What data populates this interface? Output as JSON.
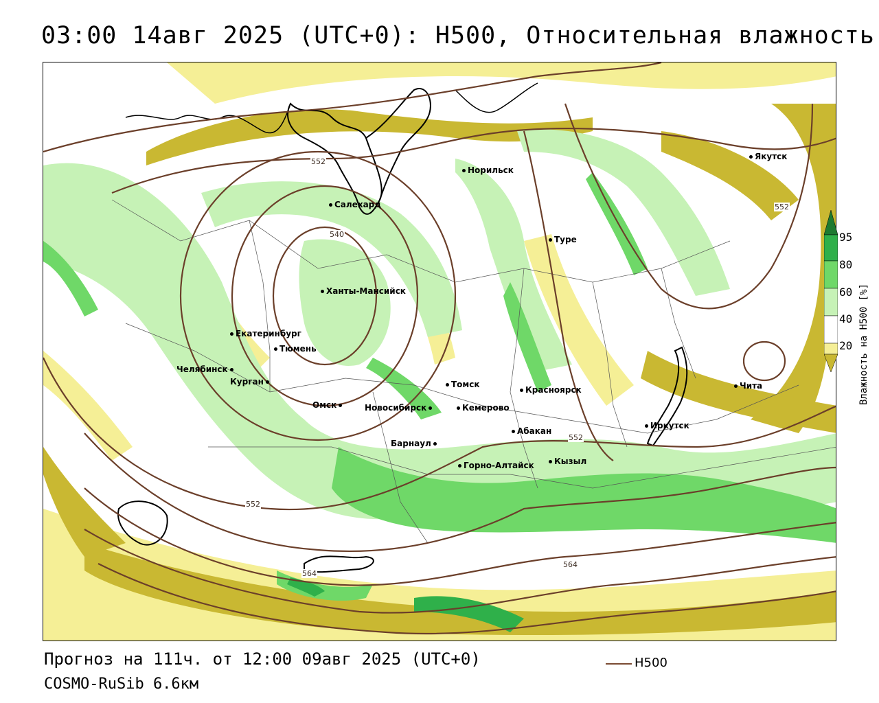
{
  "title": "03:00 14авг 2025 (UTC+0): H500, Относительная влажность",
  "footer": {
    "forecast": "Прогноз на 111ч. от 12:00 09авг 2025 (UTC+0)",
    "model": "COSMO-RuSib 6.6км",
    "line_legend": "H500"
  },
  "colorbar": {
    "label": "Влажность на H500 [%]",
    "ticks": [
      "95",
      "80",
      "60",
      "40",
      "20"
    ],
    "colors": {
      "dry_dark": "#c9b832",
      "dry_light": "#f5ef96",
      "moist_light": "#c6f2b6",
      "moist_mid": "#6fd868",
      "moist_dark": "#2fb04a",
      "very_moist": "#1d7a30",
      "contour": "#6b3f2a"
    }
  },
  "cities": [
    {
      "name": "Норильск"
    },
    {
      "name": "Якутск"
    },
    {
      "name": "Салехард"
    },
    {
      "name": "Туре"
    },
    {
      "name": "Ханты-Мансийск"
    },
    {
      "name": "Екатеринбург"
    },
    {
      "name": "Тюмень"
    },
    {
      "name": "Челябинск"
    },
    {
      "name": "Курган"
    },
    {
      "name": "Омск"
    },
    {
      "name": "Новосибирск"
    },
    {
      "name": "Томск"
    },
    {
      "name": "Кемерово"
    },
    {
      "name": "Красноярск"
    },
    {
      "name": "Абакан"
    },
    {
      "name": "Барнаул"
    },
    {
      "name": "Горно-Алтайск"
    },
    {
      "name": "Кызыл"
    },
    {
      "name": "Иркутск"
    },
    {
      "name": "Чита"
    }
  ],
  "contour_labels": [
    "552",
    "540",
    "552",
    "552",
    "552",
    "564",
    "564"
  ]
}
